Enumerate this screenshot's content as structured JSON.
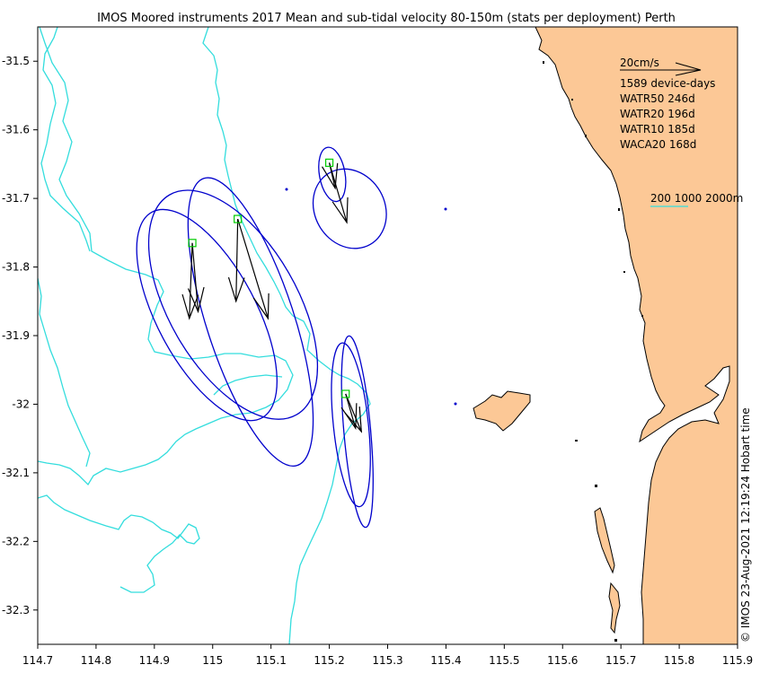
{
  "title": "IMOS Moored instruments 2017 Mean and sub-tidal velocity 80-150m (stats per deployment) Perth",
  "credit": "© IMOS 23-Aug-2021 12:19:24 Hobart time",
  "x_axis": {
    "range": [
      114.7,
      115.9
    ],
    "ticks": [
      114.7,
      114.8,
      114.9,
      115,
      115.1,
      115.2,
      115.3,
      115.4,
      115.5,
      115.6,
      115.7,
      115.8,
      115.9
    ],
    "tick_labels": [
      "114.7",
      "114.8",
      "114.9",
      "115",
      "115.1",
      "115.2",
      "115.3",
      "115.4",
      "115.5",
      "115.6",
      "115.7",
      "115.8",
      "115.9"
    ]
  },
  "y_axis": {
    "range": [
      -32.35,
      -31.45
    ],
    "ticks": [
      -31.5,
      -31.6,
      -31.7,
      -31.8,
      -31.9,
      -32,
      -32.1,
      -32.2,
      -32.3
    ],
    "tick_labels": [
      "-31.5",
      "-31.6",
      "-31.7",
      "-31.8",
      "-31.9",
      "-32",
      "-32.1",
      "-32.2",
      "-32.3"
    ]
  },
  "legend": {
    "scale_arrow_label": "20cm/s",
    "device_days": "1589 device-days",
    "stations": [
      "WATR50 246d",
      "WATR20 196d",
      "WATR10 185d",
      "WACA20 168d"
    ],
    "isobath_label": "200 1000 2000m"
  },
  "colors": {
    "land": "#fcc896",
    "isobath": "#33dddd",
    "ellipse": "#0000cc",
    "arrow": "#000000",
    "marker": "#00cc00"
  },
  "moorings": [
    {
      "lon": 114.965,
      "lat": -31.765,
      "arrows": [
        [
          114.96,
          -31.875
        ],
        [
          114.975,
          -31.865
        ]
      ],
      "ellipses": [
        {
          "center": [
            114.99,
            -31.87
          ],
          "rx_deg": 0.085,
          "ry_deg": 0.17,
          "rotation": -28
        }
      ]
    },
    {
      "lon": 115.043,
      "lat": -31.73,
      "arrows": [
        [
          115.04,
          -31.85
        ],
        [
          115.095,
          -31.875
        ]
      ],
      "ellipses": [
        {
          "center": [
            115.035,
            -31.855
          ],
          "rx_deg": 0.11,
          "ry_deg": 0.185,
          "rotation": -30
        },
        {
          "center": [
            115.065,
            -31.88
          ],
          "rx_deg": 0.075,
          "ry_deg": 0.22,
          "rotation": -18
        }
      ]
    },
    {
      "lon": 115.2,
      "lat": -31.648,
      "arrows": [
        [
          115.21,
          -31.685
        ],
        [
          115.23,
          -31.735
        ]
      ],
      "ellipses": [
        {
          "center": [
            115.205,
            -31.665
          ],
          "rx_deg": 0.022,
          "ry_deg": 0.04,
          "rotation": -10
        },
        {
          "center": [
            115.235,
            -31.715
          ],
          "rx_deg": 0.06,
          "ry_deg": 0.06,
          "rotation": -30
        }
      ]
    },
    {
      "lon": 115.228,
      "lat": -31.985,
      "arrows": [
        [
          115.245,
          -32.035
        ],
        [
          115.255,
          -32.04
        ]
      ],
      "ellipses": [
        {
          "center": [
            115.248,
            -32.04
          ],
          "rx_deg": 0.023,
          "ry_deg": 0.14,
          "rotation": -5
        },
        {
          "center": [
            115.237,
            -32.03
          ],
          "rx_deg": 0.03,
          "ry_deg": 0.12,
          "rotation": -6
        }
      ]
    }
  ]
}
